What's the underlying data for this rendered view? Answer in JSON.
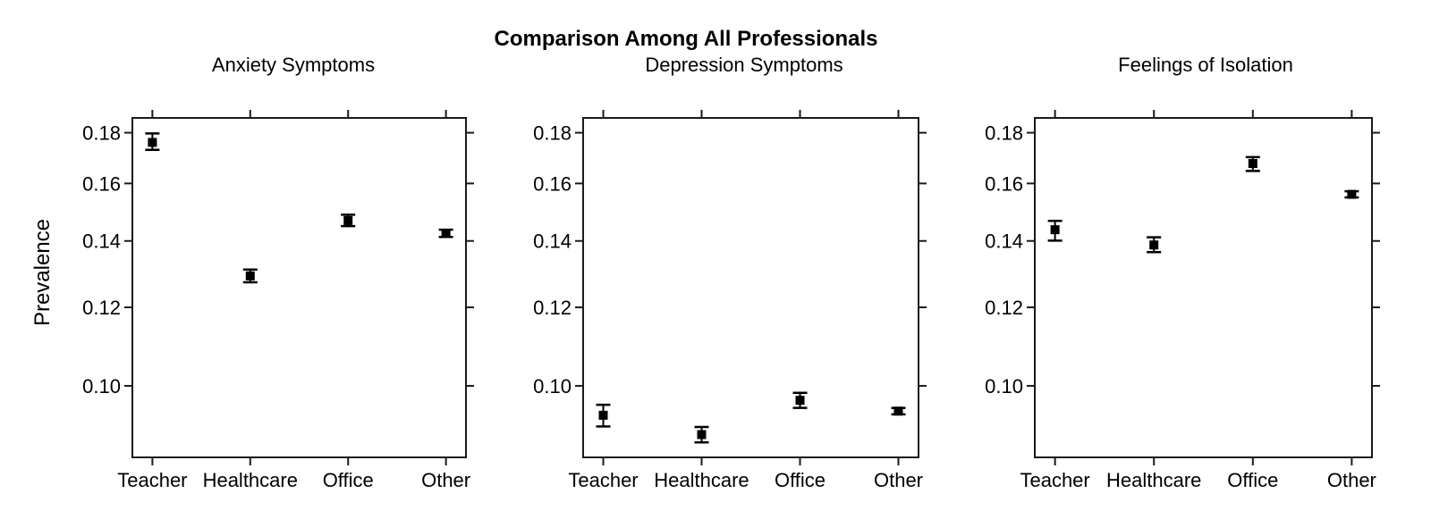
{
  "chart_data": {
    "type": "scatter",
    "title": "Comparison Among All Professionals",
    "ylabel": "Prevalence",
    "xlabel": "",
    "categories": [
      "Teacher",
      "Healthcare",
      "Office",
      "Other"
    ],
    "y_ticks": [
      0.18,
      0.16,
      0.14,
      0.12,
      0.1
    ],
    "y_tick_labels": [
      "0.18",
      "0.16",
      "0.14",
      "0.12",
      "0.10"
    ],
    "y_scale": "log",
    "ylim": [
      0.0847,
      0.1863
    ],
    "grid": false,
    "legend": "none",
    "marker": "filled-square",
    "error_bars": true,
    "colors": {
      "background": "#ffffff",
      "axis": "#1a1a1a",
      "marker": "#000000",
      "text": "#000000"
    },
    "panels": [
      {
        "subtitle": "Anxiety Symptoms",
        "points": [
          {
            "category": "Teacher",
            "value": 0.176,
            "lower": 0.173,
            "upper": 0.1797
          },
          {
            "category": "Healthcare",
            "value": 0.1291,
            "lower": 0.1272,
            "upper": 0.131
          },
          {
            "category": "Office",
            "value": 0.1468,
            "lower": 0.1449,
            "upper": 0.1488
          },
          {
            "category": "Other",
            "value": 0.1425,
            "lower": 0.1413,
            "upper": 0.1437
          }
        ]
      },
      {
        "subtitle": "Depression Symptoms",
        "points": [
          {
            "category": "Teacher",
            "value": 0.0934,
            "lower": 0.091,
            "upper": 0.0957
          },
          {
            "category": "Healthcare",
            "value": 0.0893,
            "lower": 0.0877,
            "upper": 0.0909
          },
          {
            "category": "Office",
            "value": 0.0967,
            "lower": 0.095,
            "upper": 0.0984
          },
          {
            "category": "Other",
            "value": 0.0943,
            "lower": 0.0936,
            "upper": 0.095
          }
        ]
      },
      {
        "subtitle": "Feelings of Isolation",
        "points": [
          {
            "category": "Teacher",
            "value": 0.1437,
            "lower": 0.1401,
            "upper": 0.1467
          },
          {
            "category": "Healthcare",
            "value": 0.1387,
            "lower": 0.1364,
            "upper": 0.1412
          },
          {
            "category": "Office",
            "value": 0.1676,
            "lower": 0.1647,
            "upper": 0.1701
          },
          {
            "category": "Other",
            "value": 0.156,
            "lower": 0.1549,
            "upper": 0.1571
          }
        ]
      }
    ]
  }
}
